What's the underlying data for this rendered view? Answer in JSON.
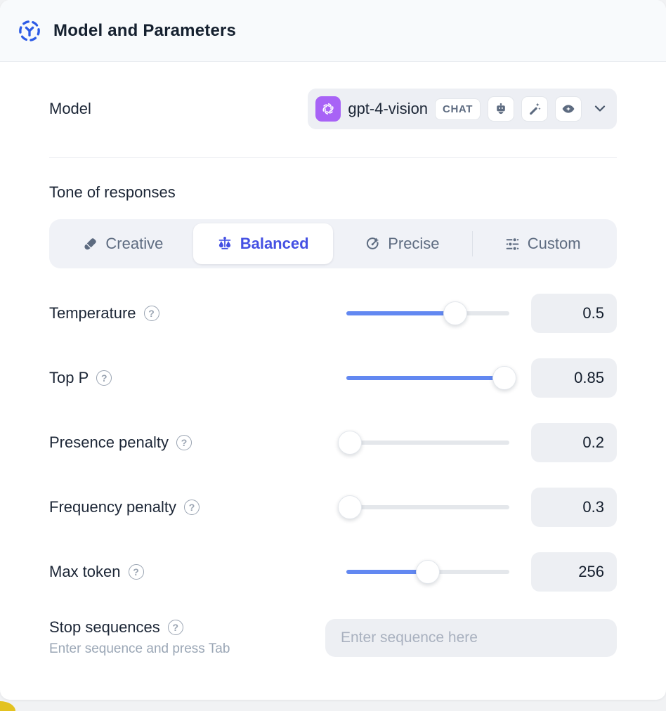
{
  "header": {
    "title": "Model and Parameters",
    "icon": "model-hub-icon"
  },
  "model": {
    "label": "Model",
    "selected": {
      "provider_icon": "openai-icon",
      "name": "gpt-4-vision",
      "type_badge": "CHAT",
      "capability_icons": [
        "robot-icon",
        "magic-wand-icon",
        "vision-eye-icon"
      ]
    }
  },
  "tone": {
    "heading": "Tone of responses",
    "options": [
      {
        "label": "Creative",
        "icon": "paintbrush-icon",
        "selected": false
      },
      {
        "label": "Balanced",
        "icon": "balance-scale-icon",
        "selected": true
      },
      {
        "label": "Precise",
        "icon": "target-icon",
        "selected": false
      },
      {
        "label": "Custom",
        "icon": "sliders-icon",
        "selected": false
      }
    ]
  },
  "parameters": [
    {
      "label": "Temperature",
      "value": "0.5",
      "slider_percent": 67
    },
    {
      "label": "Top P",
      "value": "0.85",
      "slider_percent": 97
    },
    {
      "label": "Presence penalty",
      "value": "0.2",
      "slider_percent": 2
    },
    {
      "label": "Frequency penalty",
      "value": "0.3",
      "slider_percent": 2
    },
    {
      "label": "Max token",
      "value": "256",
      "slider_percent": 50
    }
  ],
  "stop_sequences": {
    "label": "Stop sequences",
    "hint": "Enter sequence and press Tab",
    "placeholder": "Enter sequence here",
    "value": ""
  },
  "colors": {
    "accent_blue": "#2d5be6",
    "selected_tab_text": "#4450e3",
    "slider_fill": "#6288f1",
    "openai_purple": "#a863f6",
    "bottom_accent_yellow": "#e3c220"
  }
}
